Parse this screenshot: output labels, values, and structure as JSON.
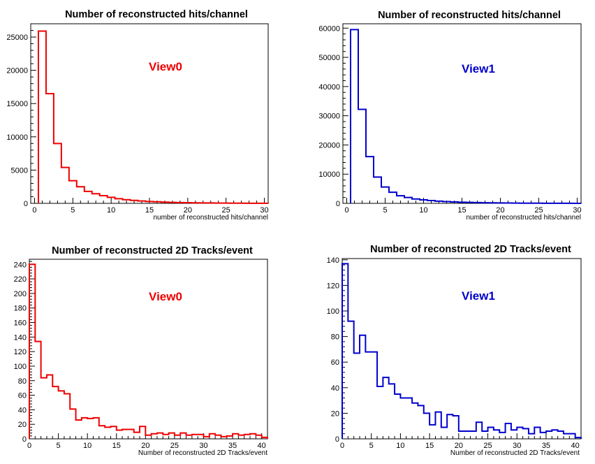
{
  "colors": {
    "view0": "#ee0000",
    "view1": "#0000cc",
    "axis": "#000000"
  },
  "chart_data": [
    {
      "type": "histogram",
      "title": "Number of reconstructed hits/channel",
      "xlabel": "number of reconstructed hits/channel",
      "ylabel": "",
      "annotation": "View0",
      "series_color": "view0",
      "xlim": [
        -0.5,
        30.5
      ],
      "ylim": [
        0,
        27000
      ],
      "xticks": [
        0,
        5,
        10,
        15,
        20,
        25,
        30
      ],
      "yticks": [
        0,
        5000,
        10000,
        15000,
        20000,
        25000
      ],
      "bin_edges_start": 0.5,
      "bin_width": 1,
      "values": [
        25900,
        16500,
        9000,
        5400,
        3400,
        2500,
        1800,
        1450,
        1150,
        900,
        700,
        550,
        450,
        350,
        280,
        230,
        190,
        150,
        120,
        100,
        85,
        70,
        60,
        45,
        35,
        28,
        20,
        15,
        10,
        8
      ]
    },
    {
      "type": "histogram",
      "title": "Number of reconstructed hits/channel",
      "xlabel": "number of reconstructed hits/channel",
      "ylabel": "",
      "annotation": "View1",
      "series_color": "view1",
      "xlim": [
        -0.5,
        30.5
      ],
      "ylim": [
        0,
        61500
      ],
      "xticks": [
        0,
        5,
        10,
        15,
        20,
        25,
        30
      ],
      "yticks": [
        0,
        10000,
        20000,
        30000,
        40000,
        50000,
        60000
      ],
      "bin_edges_start": 0.5,
      "bin_width": 1,
      "values": [
        59500,
        32200,
        16000,
        9000,
        5600,
        3800,
        2600,
        2000,
        1500,
        1200,
        950,
        750,
        600,
        480,
        390,
        320,
        260,
        210,
        170,
        140,
        115,
        95,
        75,
        60,
        48,
        38,
        30,
        22,
        16,
        12
      ]
    },
    {
      "type": "histogram",
      "title": "Number of reconstructed 2D Tracks/event",
      "xlabel": "Number of reconstructed 2D Tracks/event",
      "ylabel": "",
      "annotation": "View0",
      "series_color": "view0",
      "xlim": [
        0,
        41
      ],
      "ylim": [
        0,
        247
      ],
      "xticks": [
        0,
        5,
        10,
        15,
        20,
        25,
        30,
        35,
        40
      ],
      "yticks": [
        0,
        20,
        40,
        60,
        80,
        100,
        120,
        140,
        160,
        180,
        200,
        220,
        240
      ],
      "bin_edges_start": 0,
      "bin_width": 1,
      "values": [
        240,
        134,
        84,
        88,
        72,
        66,
        62,
        41,
        26,
        29,
        28,
        29,
        18,
        16,
        17,
        12,
        13,
        13,
        9,
        17,
        5,
        7,
        8,
        6,
        8,
        5,
        8,
        5,
        6,
        6,
        3,
        7,
        5,
        3,
        4,
        7,
        5,
        6,
        7,
        5,
        2
      ]
    },
    {
      "type": "histogram",
      "title": "Number of reconstructed 2D Tracks/event",
      "xlabel": "Number of reconstructed 2D Tracks/event",
      "ylabel": "",
      "annotation": "View1",
      "series_color": "view1",
      "xlim": [
        0,
        41
      ],
      "ylim": [
        0,
        141
      ],
      "xticks": [
        0,
        5,
        10,
        15,
        20,
        25,
        30,
        35,
        40
      ],
      "yticks": [
        0,
        20,
        40,
        60,
        80,
        100,
        120,
        140
      ],
      "bin_edges_start": 0,
      "bin_width": 1,
      "values": [
        137,
        92,
        67,
        81,
        68,
        68,
        41,
        48,
        43,
        35,
        32,
        32,
        28,
        26,
        20,
        11,
        21,
        9,
        19,
        18,
        6,
        6,
        6,
        13,
        6,
        9,
        7,
        5,
        12,
        7,
        9,
        8,
        4,
        9,
        5,
        6,
        7,
        6,
        4,
        4,
        1
      ]
    }
  ]
}
